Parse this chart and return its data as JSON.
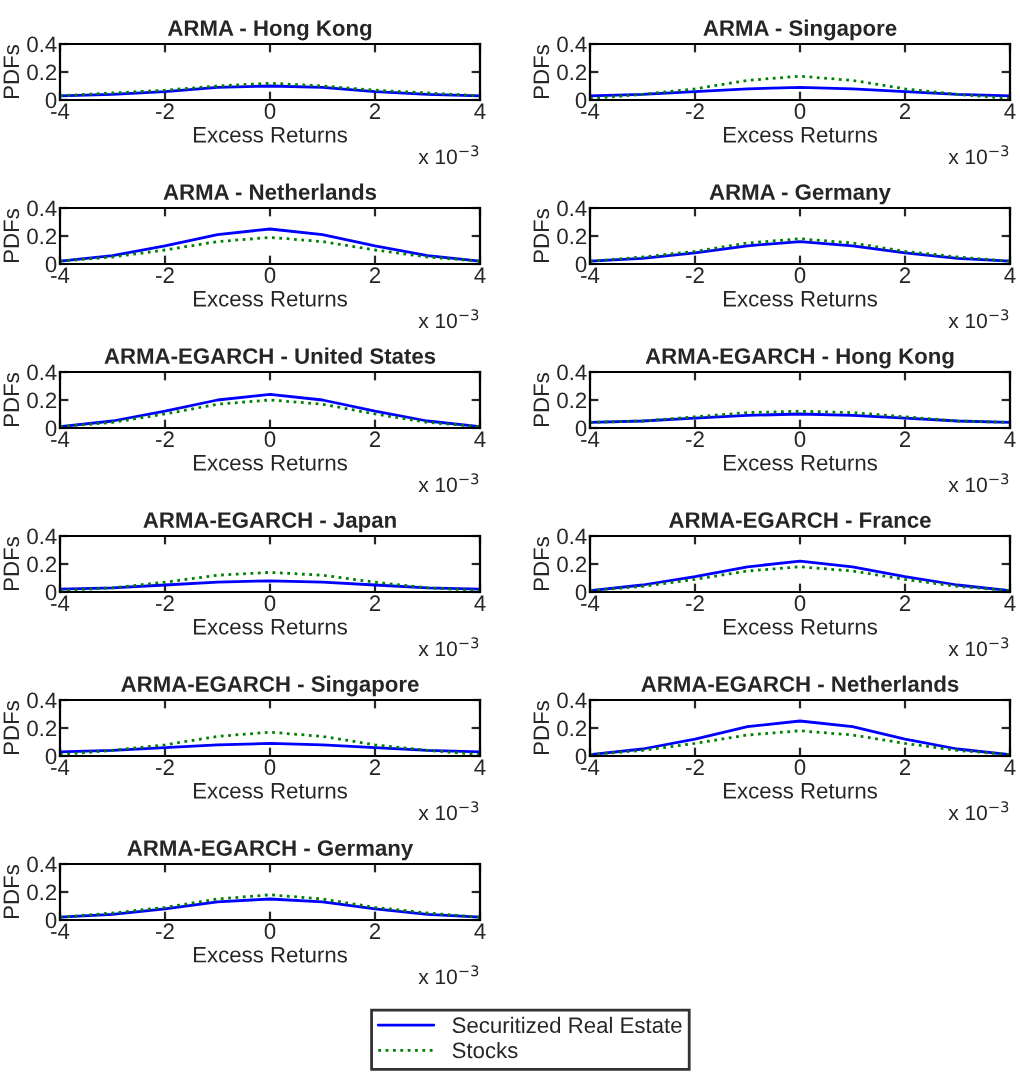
{
  "chart_data": [
    {
      "type": "line",
      "title": "ARMA - Hong Kong",
      "legend": "bottom",
      "xlabel": "Excess Returns",
      "ylabel": "PDFs",
      "annotations": [
        "x 10$^{−3}$"
      ],
      "x": [
        -4,
        -3,
        -2,
        -1,
        0,
        1,
        2,
        3,
        4
      ],
      "xlim": [
        -4,
        4
      ],
      "xticks": [
        -4,
        -2,
        0,
        2,
        4
      ],
      "ylim": [
        0,
        0.4
      ],
      "yticks": [
        0,
        0.2,
        0.4
      ],
      "series": [
        {
          "name": "Securitized Real Estate",
          "color": "#0000ff",
          "line_style": "solid",
          "values": [
            0.03,
            0.04,
            0.06,
            0.09,
            0.1,
            0.09,
            0.06,
            0.04,
            0.03
          ]
        },
        {
          "name": "Stocks",
          "color": "#008000",
          "line_style": "dotted",
          "values": [
            0.03,
            0.05,
            0.07,
            0.1,
            0.12,
            0.1,
            0.07,
            0.05,
            0.03
          ]
        }
      ]
    },
    {
      "type": "line",
      "title": "ARMA - Singapore",
      "legend": "bottom",
      "xlabel": "Excess Returns",
      "ylabel": "PDFs",
      "annotations": [
        "x 10$^{−3}$"
      ],
      "x": [
        -4,
        -3,
        -2,
        -1,
        0,
        1,
        2,
        3,
        4
      ],
      "xlim": [
        -4,
        4
      ],
      "xticks": [
        -4,
        -2,
        0,
        2,
        4
      ],
      "ylim": [
        0,
        0.4
      ],
      "yticks": [
        0,
        0.2,
        0.4
      ],
      "series": [
        {
          "name": "Securitized Real Estate",
          "color": "#0000ff",
          "line_style": "solid",
          "values": [
            0.03,
            0.04,
            0.06,
            0.08,
            0.09,
            0.08,
            0.06,
            0.04,
            0.03
          ]
        },
        {
          "name": "Stocks",
          "color": "#008000",
          "line_style": "dotted",
          "values": [
            0.01,
            0.04,
            0.08,
            0.14,
            0.17,
            0.14,
            0.08,
            0.04,
            0.01
          ]
        }
      ]
    },
    {
      "type": "line",
      "title": "ARMA - Netherlands",
      "legend": "bottom",
      "xlabel": "Excess Returns",
      "ylabel": "PDFs",
      "annotations": [
        "x 10$^{−3}$"
      ],
      "x": [
        -4,
        -3,
        -2,
        -1,
        0,
        1,
        2,
        3,
        4
      ],
      "xlim": [
        -4,
        4
      ],
      "xticks": [
        -4,
        -2,
        0,
        2,
        4
      ],
      "ylim": [
        0,
        0.4
      ],
      "yticks": [
        0,
        0.2,
        0.4
      ],
      "series": [
        {
          "name": "Securitized Real Estate",
          "color": "#0000ff",
          "line_style": "solid",
          "values": [
            0.02,
            0.06,
            0.13,
            0.21,
            0.25,
            0.21,
            0.13,
            0.06,
            0.02
          ]
        },
        {
          "name": "Stocks",
          "color": "#008000",
          "line_style": "dotted",
          "values": [
            0.02,
            0.05,
            0.1,
            0.16,
            0.19,
            0.16,
            0.1,
            0.05,
            0.02
          ]
        }
      ]
    },
    {
      "type": "line",
      "title": "ARMA - Germany",
      "legend": "bottom",
      "xlabel": "Excess Returns",
      "ylabel": "PDFs",
      "annotations": [
        "x 10$^{−3}$"
      ],
      "x": [
        -4,
        -3,
        -2,
        -1,
        0,
        1,
        2,
        3,
        4
      ],
      "xlim": [
        -4,
        4
      ],
      "xticks": [
        -4,
        -2,
        0,
        2,
        4
      ],
      "ylim": [
        0,
        0.4
      ],
      "yticks": [
        0,
        0.2,
        0.4
      ],
      "series": [
        {
          "name": "Securitized Real Estate",
          "color": "#0000ff",
          "line_style": "solid",
          "values": [
            0.02,
            0.04,
            0.08,
            0.13,
            0.16,
            0.13,
            0.08,
            0.04,
            0.02
          ]
        },
        {
          "name": "Stocks",
          "color": "#008000",
          "line_style": "dotted",
          "values": [
            0.02,
            0.05,
            0.09,
            0.15,
            0.18,
            0.15,
            0.09,
            0.05,
            0.02
          ]
        }
      ]
    },
    {
      "type": "line",
      "title": "ARMA-EGARCH - United States",
      "legend": "bottom",
      "xlabel": "Excess Returns",
      "ylabel": "PDFs",
      "annotations": [
        "x 10$^{−3}$"
      ],
      "x": [
        -4,
        -3,
        -2,
        -1,
        0,
        1,
        2,
        3,
        4
      ],
      "xlim": [
        -4,
        4
      ],
      "xticks": [
        -4,
        -2,
        0,
        2,
        4
      ],
      "ylim": [
        0,
        0.4
      ],
      "yticks": [
        0,
        0.2,
        0.4
      ],
      "series": [
        {
          "name": "Securitized Real Estate",
          "color": "#0000ff",
          "line_style": "solid",
          "values": [
            0.01,
            0.05,
            0.12,
            0.2,
            0.24,
            0.2,
            0.12,
            0.05,
            0.01
          ]
        },
        {
          "name": "Stocks",
          "color": "#008000",
          "line_style": "dotted",
          "values": [
            0.01,
            0.04,
            0.1,
            0.17,
            0.2,
            0.17,
            0.1,
            0.04,
            0.01
          ]
        }
      ]
    },
    {
      "type": "line",
      "title": "ARMA-EGARCH - Hong Kong",
      "legend": "bottom",
      "xlabel": "Excess Returns",
      "ylabel": "PDFs",
      "annotations": [
        "x 10$^{−3}$"
      ],
      "x": [
        -4,
        -3,
        -2,
        -1,
        0,
        1,
        2,
        3,
        4
      ],
      "xlim": [
        -4,
        4
      ],
      "xticks": [
        -4,
        -2,
        0,
        2,
        4
      ],
      "ylim": [
        0,
        0.4
      ],
      "yticks": [
        0,
        0.2,
        0.4
      ],
      "series": [
        {
          "name": "Securitized Real Estate",
          "color": "#0000ff",
          "line_style": "solid",
          "values": [
            0.04,
            0.05,
            0.07,
            0.09,
            0.1,
            0.09,
            0.07,
            0.05,
            0.04
          ]
        },
        {
          "name": "Stocks",
          "color": "#008000",
          "line_style": "dotted",
          "values": [
            0.04,
            0.05,
            0.08,
            0.11,
            0.12,
            0.11,
            0.08,
            0.05,
            0.04
          ]
        }
      ]
    },
    {
      "type": "line",
      "title": "ARMA-EGARCH - Japan",
      "legend": "bottom",
      "xlabel": "Excess Returns",
      "ylabel": "PDFs",
      "annotations": [
        "x 10$^{−3}$"
      ],
      "x": [
        -4,
        -3,
        -2,
        -1,
        0,
        1,
        2,
        3,
        4
      ],
      "xlim": [
        -4,
        4
      ],
      "xticks": [
        -4,
        -2,
        0,
        2,
        4
      ],
      "ylim": [
        0,
        0.4
      ],
      "yticks": [
        0,
        0.2,
        0.4
      ],
      "series": [
        {
          "name": "Securitized Real Estate",
          "color": "#0000ff",
          "line_style": "solid",
          "values": [
            0.02,
            0.03,
            0.05,
            0.07,
            0.08,
            0.07,
            0.05,
            0.03,
            0.02
          ]
        },
        {
          "name": "Stocks",
          "color": "#008000",
          "line_style": "dotted",
          "values": [
            0.01,
            0.03,
            0.07,
            0.12,
            0.14,
            0.12,
            0.07,
            0.03,
            0.01
          ]
        }
      ]
    },
    {
      "type": "line",
      "title": "ARMA-EGARCH - France",
      "legend": "bottom",
      "xlabel": "Excess Returns",
      "ylabel": "PDFs",
      "annotations": [
        "x 10$^{−3}$"
      ],
      "x": [
        -4,
        -3,
        -2,
        -1,
        0,
        1,
        2,
        3,
        4
      ],
      "xlim": [
        -4,
        4
      ],
      "xticks": [
        -4,
        -2,
        0,
        2,
        4
      ],
      "ylim": [
        0,
        0.4
      ],
      "yticks": [
        0,
        0.2,
        0.4
      ],
      "series": [
        {
          "name": "Securitized Real Estate",
          "color": "#0000ff",
          "line_style": "solid",
          "values": [
            0.01,
            0.05,
            0.11,
            0.18,
            0.22,
            0.18,
            0.11,
            0.05,
            0.01
          ]
        },
        {
          "name": "Stocks",
          "color": "#008000",
          "line_style": "dotted",
          "values": [
            0.01,
            0.04,
            0.09,
            0.15,
            0.18,
            0.15,
            0.09,
            0.04,
            0.01
          ]
        }
      ]
    },
    {
      "type": "line",
      "title": "ARMA-EGARCH - Singapore",
      "legend": "bottom",
      "xlabel": "Excess Returns",
      "ylabel": "PDFs",
      "annotations": [
        "x 10$^{−3}$"
      ],
      "x": [
        -4,
        -3,
        -2,
        -1,
        0,
        1,
        2,
        3,
        4
      ],
      "xlim": [
        -4,
        4
      ],
      "xticks": [
        -4,
        -2,
        0,
        2,
        4
      ],
      "ylim": [
        0,
        0.4
      ],
      "yticks": [
        0,
        0.2,
        0.4
      ],
      "series": [
        {
          "name": "Securitized Real Estate",
          "color": "#0000ff",
          "line_style": "solid",
          "values": [
            0.03,
            0.04,
            0.06,
            0.08,
            0.09,
            0.08,
            0.06,
            0.04,
            0.03
          ]
        },
        {
          "name": "Stocks",
          "color": "#008000",
          "line_style": "dotted",
          "values": [
            0.01,
            0.04,
            0.08,
            0.14,
            0.17,
            0.14,
            0.08,
            0.04,
            0.01
          ]
        }
      ]
    },
    {
      "type": "line",
      "title": "ARMA-EGARCH - Netherlands",
      "legend": "bottom",
      "xlabel": "Excess Returns",
      "ylabel": "PDFs",
      "annotations": [
        "x 10$^{−3}$"
      ],
      "x": [
        -4,
        -3,
        -2,
        -1,
        0,
        1,
        2,
        3,
        4
      ],
      "xlim": [
        -4,
        4
      ],
      "xticks": [
        -4,
        -2,
        0,
        2,
        4
      ],
      "ylim": [
        0,
        0.4
      ],
      "yticks": [
        0,
        0.2,
        0.4
      ],
      "series": [
        {
          "name": "Securitized Real Estate",
          "color": "#0000ff",
          "line_style": "solid",
          "values": [
            0.01,
            0.05,
            0.12,
            0.21,
            0.25,
            0.21,
            0.12,
            0.05,
            0.01
          ]
        },
        {
          "name": "Stocks",
          "color": "#008000",
          "line_style": "dotted",
          "values": [
            0.01,
            0.04,
            0.09,
            0.15,
            0.18,
            0.15,
            0.09,
            0.04,
            0.01
          ]
        }
      ]
    },
    {
      "type": "line",
      "title": "ARMA-EGARCH - Germany",
      "xlabel": "Excess Returns",
      "ylabel": "PDFs",
      "annotations": [
        "x 10$^{−3}$"
      ],
      "x": [
        -4,
        -3,
        -2,
        -1,
        0,
        1,
        2,
        3,
        4
      ],
      "xlim": [
        -4,
        4
      ],
      "xticks": [
        -4,
        -2,
        0,
        2,
        4
      ],
      "ylim": [
        0,
        0.4
      ],
      "yticks": [
        0,
        0.2,
        0.4
      ],
      "legend": "bottom",
      "series": [
        {
          "name": "Securitized Real Estate",
          "color": "#0000ff",
          "line_style": "solid",
          "values": [
            0.02,
            0.04,
            0.08,
            0.13,
            0.15,
            0.13,
            0.08,
            0.04,
            0.02
          ]
        },
        {
          "name": "Stocks",
          "color": "#008000",
          "line_style": "dotted",
          "values": [
            0.02,
            0.05,
            0.09,
            0.15,
            0.18,
            0.15,
            0.09,
            0.05,
            0.02
          ]
        }
      ]
    }
  ]
}
